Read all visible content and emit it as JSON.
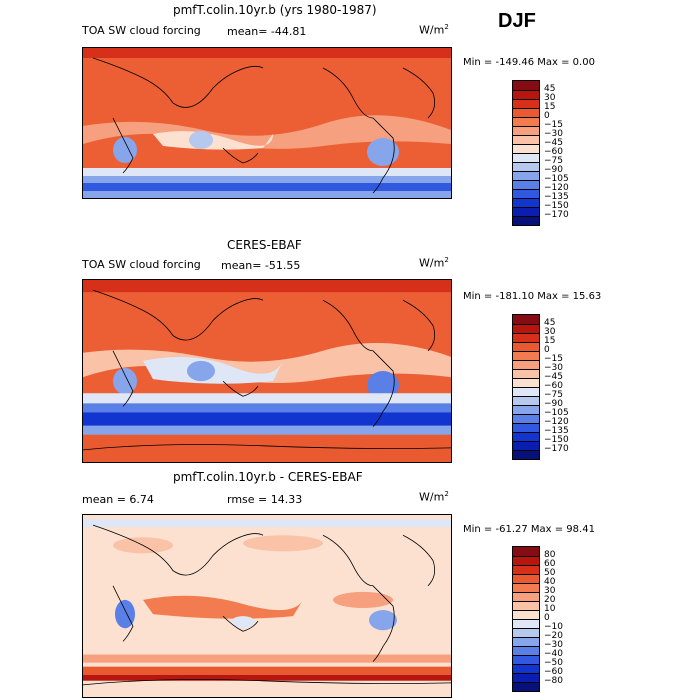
{
  "season": "DJF",
  "panels": [
    {
      "title": "pmfT.colin.10yr.b (yrs 1980-1987)",
      "variable": "TOA SW cloud forcing",
      "stat_text": "mean=  -44.81",
      "units_base": "W/m",
      "units_exp": "2",
      "minmax": "Min = -149.46 Max =    0.00"
    },
    {
      "title": "CERES-EBAF",
      "variable": "TOA SW cloud forcing",
      "stat_text": "mean=  -51.55",
      "units_base": "W/m",
      "units_exp": "2",
      "minmax": "Min = -181.10 Max =   15.63"
    },
    {
      "title": "pmfT.colin.10yr.b - CERES-EBAF",
      "mean_text": "mean =    6.74",
      "rmse_text": "rmse =   14.33",
      "units_base": "W/m",
      "units_exp": "2",
      "minmax": "Min = -61.27 Max =  98.41"
    }
  ],
  "chart_data": [
    {
      "type": "heatmap",
      "title": "pmfT.colin.10yr.b (yrs 1980-1987)",
      "subtitle": "TOA SW cloud forcing",
      "units": "W/m^2",
      "mean": -44.81,
      "min": -149.46,
      "max": 0.0,
      "colorbar_levels": [
        "45",
        "30",
        "15",
        "0",
        "−15",
        "−30",
        "−45",
        "−60",
        "−75",
        "−90",
        "−105",
        "−120",
        "−135",
        "−150",
        "−170"
      ],
      "colorbar_colors": [
        "#850c12",
        "#b8150f",
        "#d6301b",
        "#ea5a30",
        "#f27c50",
        "#f6a07f",
        "#fac3a8",
        "#fce1d0",
        "#dfe6f5",
        "#b5c9ef",
        "#86a5eb",
        "#5a80e8",
        "#3059df",
        "#1235cf",
        "#0a1eb0",
        "#06117a"
      ]
    },
    {
      "type": "heatmap",
      "title": "CERES-EBAF",
      "subtitle": "TOA SW cloud forcing",
      "units": "W/m^2",
      "mean": -51.55,
      "min": -181.1,
      "max": 15.63,
      "colorbar_levels": [
        "45",
        "30",
        "15",
        "0",
        "−15",
        "−30",
        "−45",
        "−60",
        "−75",
        "−90",
        "−105",
        "−120",
        "−135",
        "−150",
        "−170"
      ],
      "colorbar_colors": [
        "#850c12",
        "#b8150f",
        "#d6301b",
        "#ea5a30",
        "#f27c50",
        "#f6a07f",
        "#fac3a8",
        "#fce1d0",
        "#dfe6f5",
        "#b5c9ef",
        "#86a5eb",
        "#5a80e8",
        "#3059df",
        "#1235cf",
        "#0a1eb0",
        "#06117a"
      ]
    },
    {
      "type": "heatmap",
      "title": "pmfT.colin.10yr.b - CERES-EBAF",
      "units": "W/m^2",
      "mean": 6.74,
      "rmse": 14.33,
      "min": -61.27,
      "max": 98.41,
      "colorbar_levels": [
        "80",
        "60",
        "50",
        "40",
        "30",
        "20",
        "10",
        "0",
        "−10",
        "−20",
        "−30",
        "−40",
        "−50",
        "−60",
        "−80"
      ],
      "colorbar_colors": [
        "#850c12",
        "#b8150f",
        "#d6301b",
        "#ea5a30",
        "#f27c50",
        "#f6a07f",
        "#fac3a8",
        "#fce1d0",
        "#dfe6f5",
        "#b5c9ef",
        "#86a5eb",
        "#5a80e8",
        "#3059df",
        "#1235cf",
        "#0a1eb0",
        "#06117a"
      ]
    }
  ]
}
